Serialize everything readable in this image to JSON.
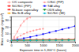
{
  "chart_data": {
    "type": "line",
    "x_label": "Exposure time in 1,200°C (hours)",
    "y_label": "Mass change (mg/cm²)",
    "xlim": [
      0,
      2000
    ],
    "xticks": [
      0,
      500,
      1000,
      1500,
      2000
    ],
    "ylim": [
      -2,
      35
    ],
    "yticks": [
      0,
      10,
      20,
      30
    ],
    "grid": true,
    "legend": "top",
    "series": [
      {
        "name": "C/C composite",
        "color": "#ff9999",
        "marker": "diamond",
        "line_style": "solid",
        "x": [
          0,
          100,
          200,
          300,
          400,
          500,
          600
        ],
        "values": [
          0,
          5,
          13,
          22,
          28,
          32,
          34
        ]
      },
      {
        "name": "C/SiC (PIP)",
        "color": "#ff9999",
        "marker": "circle",
        "line_style": "dashed",
        "x": [
          0,
          100,
          200,
          300,
          400,
          500,
          600,
          700,
          800,
          900,
          1000
        ],
        "values": [
          0,
          2,
          4.5,
          7,
          9.5,
          11.5,
          13,
          14.5,
          15.5,
          16.5,
          17
        ]
      },
      {
        "name": "SiC/SiC (PIP)",
        "color": "#ff0000",
        "marker": "square",
        "line_style": "solid",
        "x": [
          0,
          200,
          400,
          600,
          800,
          1000,
          1200,
          1400,
          1600,
          1800,
          2000
        ],
        "values": [
          0,
          0.5,
          0.8,
          1.0,
          1.15,
          1.25,
          1.32,
          1.38,
          1.42,
          1.46,
          1.5
        ]
      },
      {
        "name": "TiAl alloy",
        "color": "#0000ff",
        "marker": "square",
        "line_style": "solid",
        "x": [
          0,
          200,
          400,
          600,
          800,
          1000,
          1200,
          1400,
          1600,
          1800,
          2000
        ],
        "values": [
          0,
          1.5,
          3.2,
          5.0,
          7.0,
          9.2,
          11.5,
          13.8,
          16.2,
          18.5,
          21
        ]
      },
      {
        "name": "Ni-base superalloy",
        "color": "#ff0000",
        "marker": "triangle-up",
        "line_style": "solid",
        "x": [
          0,
          200,
          400,
          600,
          800,
          1000,
          1200,
          1400,
          1600,
          1800,
          2000
        ],
        "values": [
          0,
          0.2,
          0.35,
          0.5,
          0.62,
          0.72,
          0.82,
          0.9,
          0.97,
          1.03,
          1.08
        ]
      },
      {
        "name": "ODS alloy",
        "color": "#008000",
        "marker": "triangle-down",
        "line_style": "solid",
        "x": [
          0,
          200,
          400,
          600,
          800,
          1000,
          1200,
          1400,
          1600,
          1800,
          2000
        ],
        "values": [
          0,
          0.1,
          0.2,
          0.3,
          0.4,
          0.48,
          0.55,
          0.62,
          0.68,
          0.74,
          0.8
        ]
      },
      {
        "name": "Mo-Si-B alloy",
        "color": "#ffa500",
        "marker": "circle",
        "line_style": "solid",
        "x": [
          0,
          200,
          400,
          600,
          800,
          1000,
          1200,
          1400,
          1600,
          1800,
          2000
        ],
        "values": [
          0,
          0.08,
          0.15,
          0.22,
          0.28,
          0.33,
          0.38,
          0.43,
          0.47,
          0.51,
          0.55
        ]
      },
      {
        "name": "SiC/SiC (MI)",
        "color": "#00bcd4",
        "marker": "square",
        "line_style": "solid",
        "x": [
          0,
          200,
          400,
          600,
          800,
          1000,
          1200,
          1400,
          1600,
          1800,
          2000
        ],
        "values": [
          0,
          0.05,
          0.1,
          0.14,
          0.18,
          0.22,
          0.26,
          0.29,
          0.32,
          0.35,
          0.38
        ]
      }
    ]
  }
}
